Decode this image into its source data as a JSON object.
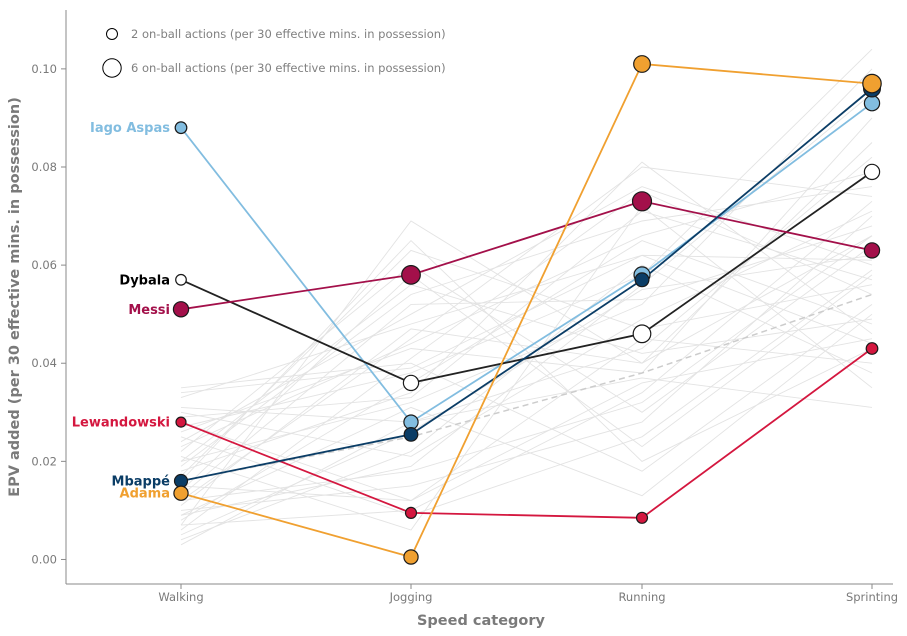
{
  "chart_data": {
    "type": "line",
    "xlabel": "Speed category",
    "ylabel": "EPV added (per 30 effective mins. in possession)",
    "categories": [
      "Walking",
      "Jogging",
      "Running",
      "Sprinting"
    ],
    "ylim": [
      -0.005,
      0.112
    ],
    "yticks": [
      0.0,
      0.02,
      0.04,
      0.06,
      0.08,
      0.1
    ],
    "ytick_labels": [
      "0.00",
      "0.02",
      "0.04",
      "0.06",
      "0.08",
      "0.10"
    ],
    "grid": false,
    "legend": {
      "placement": "top-left",
      "entries": [
        {
          "label": "2 on-ball actions (per 30 effective mins. in possession)",
          "actions": 2
        },
        {
          "label": "6 on-ball actions (per 30 effective mins. in possession)",
          "actions": 6
        }
      ]
    },
    "average_line": {
      "name": "average",
      "values": [
        0.016,
        0.025,
        0.038,
        0.054
      ],
      "color": "#cccccc"
    },
    "background_series_color": "#e3e3e3",
    "background_series": [
      [
        0.007,
        0.069,
        0.04,
        0.066
      ],
      [
        0.012,
        0.045,
        0.08,
        0.074
      ],
      [
        0.02,
        0.032,
        0.052,
        0.1
      ],
      [
        0.028,
        0.012,
        0.036,
        0.045
      ],
      [
        0.035,
        0.04,
        0.018,
        0.052
      ],
      [
        0.004,
        0.022,
        0.06,
        0.038
      ],
      [
        0.017,
        0.063,
        0.047,
        0.056
      ],
      [
        0.01,
        0.015,
        0.028,
        0.07
      ],
      [
        0.024,
        0.05,
        0.076,
        0.06
      ],
      [
        0.031,
        0.028,
        0.043,
        0.082
      ],
      [
        0.008,
        0.036,
        0.065,
        0.048
      ],
      [
        0.014,
        0.058,
        0.023,
        0.058
      ],
      [
        0.021,
        0.006,
        0.072,
        0.035
      ],
      [
        0.026,
        0.043,
        0.038,
        0.09
      ],
      [
        0.005,
        0.026,
        0.055,
        0.062
      ],
      [
        0.033,
        0.048,
        0.062,
        0.044
      ],
      [
        0.012,
        0.018,
        0.032,
        0.066
      ],
      [
        0.019,
        0.054,
        0.069,
        0.076
      ],
      [
        0.009,
        0.031,
        0.013,
        0.05
      ],
      [
        0.027,
        0.038,
        0.058,
        0.104
      ],
      [
        0.015,
        0.012,
        0.045,
        0.04
      ],
      [
        0.022,
        0.06,
        0.03,
        0.064
      ],
      [
        0.006,
        0.041,
        0.075,
        0.054
      ],
      [
        0.03,
        0.021,
        0.049,
        0.071
      ],
      [
        0.011,
        0.047,
        0.04,
        0.085
      ],
      [
        0.018,
        0.034,
        0.081,
        0.046
      ],
      [
        0.025,
        0.009,
        0.025,
        0.059
      ],
      [
        0.013,
        0.052,
        0.053,
        0.068
      ],
      [
        0.003,
        0.028,
        0.037,
        0.031
      ],
      [
        0.023,
        0.044,
        0.066,
        0.079
      ],
      [
        0.016,
        0.065,
        0.02,
        0.043
      ],
      [
        0.009,
        0.019,
        0.056,
        0.095
      ],
      [
        0.029,
        0.033,
        0.071,
        0.057
      ],
      [
        0.02,
        0.056,
        0.042,
        0.049
      ],
      [
        0.007,
        0.01,
        0.034,
        0.073
      ],
      [
        0.034,
        0.039,
        0.062,
        0.061
      ]
    ],
    "series": [
      {
        "name": "Iago Aspas",
        "color": "#82bde0",
        "values": [
          0.088,
          0.028,
          0.058,
          0.093
        ],
        "actions": [
          2.2,
          3.5,
          4.5,
          4.0
        ]
      },
      {
        "name": "Dybala",
        "color": "#000000",
        "fill": "#ffffff",
        "values": [
          0.057,
          0.036,
          0.046,
          0.079
        ],
        "actions": [
          1.8,
          4.0,
          5.5,
          4.0
        ]
      },
      {
        "name": "Messi",
        "color": "#a3104a",
        "values": [
          0.051,
          0.058,
          0.073,
          0.063
        ],
        "actions": [
          4.0,
          6.2,
          6.5,
          4.0
        ]
      },
      {
        "name": "Lewandowski",
        "color": "#d4173f",
        "values": [
          0.028,
          0.0095,
          0.0085,
          0.043
        ],
        "actions": [
          1.6,
          2.0,
          2.0,
          2.2
        ]
      },
      {
        "name": "Mbappé",
        "color": "#0b3d66",
        "values": [
          0.016,
          0.0255,
          0.057,
          0.096
        ],
        "actions": [
          2.8,
          3.1,
          3.2,
          5.0
        ]
      },
      {
        "name": "Adama",
        "color": "#f0a030",
        "values": [
          0.0135,
          0.0005,
          0.101,
          0.097
        ],
        "actions": [
          3.5,
          3.5,
          4.8,
          6.0
        ]
      }
    ]
  }
}
